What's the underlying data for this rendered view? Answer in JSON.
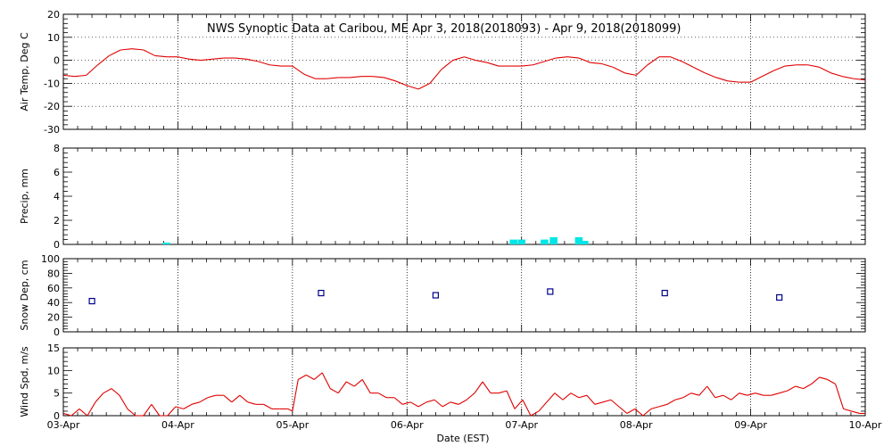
{
  "chart_data": {
    "title": "NWS Synoptic Data at Caribou, ME   Apr  3, 2018(2018093) - Apr  9, 2018(2018099)",
    "xlabel": "Date (EST)",
    "x_ticks": [
      "03-Apr",
      "04-Apr",
      "05-Apr",
      "06-Apr",
      "07-Apr",
      "08-Apr",
      "09-Apr",
      "10-Apr"
    ],
    "xlim": [
      0,
      7
    ],
    "panels": [
      {
        "name": "air-temp",
        "type": "line",
        "ylabel": "Air Temp, Deg C",
        "ylim": [
          -30,
          20
        ],
        "yticks": [
          20,
          10,
          0,
          -10,
          -20,
          -30
        ],
        "color": "#e00000",
        "x": [
          0,
          0.1,
          0.2,
          0.3,
          0.4,
          0.5,
          0.6,
          0.7,
          0.8,
          0.9,
          1.0,
          1.1,
          1.2,
          1.3,
          1.4,
          1.5,
          1.6,
          1.7,
          1.8,
          1.9,
          2.0,
          2.1,
          2.2,
          2.3,
          2.4,
          2.5,
          2.6,
          2.7,
          2.8,
          2.9,
          3.0,
          3.1,
          3.2,
          3.3,
          3.4,
          3.5,
          3.6,
          3.7,
          3.8,
          3.9,
          4.0,
          4.1,
          4.2,
          4.3,
          4.4,
          4.5,
          4.6,
          4.7,
          4.8,
          4.9,
          5.0,
          5.1,
          5.2,
          5.3,
          5.4,
          5.5,
          5.6,
          5.7,
          5.8,
          5.9,
          6.0,
          6.1,
          6.2,
          6.3,
          6.4,
          6.5,
          6.6,
          6.7,
          6.8,
          6.9,
          7.0
        ],
        "values": [
          -6.5,
          -7,
          -6.5,
          -2,
          2,
          4.5,
          5,
          4.5,
          2,
          1.5,
          1.5,
          0.5,
          0,
          0.5,
          1,
          1,
          0.5,
          -0.5,
          -2,
          -2.5,
          -2.5,
          -6,
          -8,
          -8,
          -7.5,
          -7.5,
          -7,
          -7,
          -7.5,
          -9,
          -11,
          -12.5,
          -10,
          -4,
          0,
          1.5,
          0,
          -1,
          -2.5,
          -2.5,
          -2.5,
          -2,
          -0.5,
          1,
          1.5,
          1,
          -1,
          -1.5,
          -3,
          -5.5,
          -6.5,
          -2,
          1.5,
          1.5,
          -0.5,
          -3,
          -5.5,
          -7.5,
          -9,
          -9.5,
          -9.5,
          -7,
          -4.5,
          -2.5,
          -2,
          -2,
          -3,
          -5.5,
          -7,
          -8,
          -8.5
        ]
      },
      {
        "name": "precip",
        "type": "bar",
        "ylabel": "Precip, mm",
        "ylim": [
          0,
          8
        ],
        "yticks": [
          8,
          6,
          4,
          2,
          0
        ],
        "color": "#00e5e5",
        "x": [
          0.9,
          3.93,
          4.0,
          4.2,
          4.28,
          4.5,
          4.55
        ],
        "values": [
          0.15,
          0.4,
          0.4,
          0.4,
          0.6,
          0.6,
          0.3
        ]
      },
      {
        "name": "snow-depth",
        "type": "scatter",
        "ylabel": "Snow Dep, cm",
        "ylim": [
          0,
          100
        ],
        "yticks": [
          100,
          80,
          60,
          40,
          20,
          0
        ],
        "color": "#00008b",
        "x": [
          0.25,
          2.25,
          3.25,
          4.25,
          5.25,
          6.25
        ],
        "values": [
          42,
          53,
          50,
          55,
          53,
          47
        ]
      },
      {
        "name": "wind-speed",
        "type": "line",
        "ylabel": "Wind Spd, m/s",
        "ylim": [
          0,
          15
        ],
        "yticks": [
          15,
          10,
          5,
          0
        ],
        "color": "#e00000",
        "x": [
          0,
          0.07,
          0.14,
          0.21,
          0.28,
          0.35,
          0.42,
          0.49,
          0.56,
          0.63,
          0.7,
          0.77,
          0.84,
          0.91,
          0.98,
          1.05,
          1.12,
          1.19,
          1.26,
          1.33,
          1.4,
          1.47,
          1.54,
          1.61,
          1.68,
          1.75,
          1.82,
          1.89,
          1.96,
          2.0,
          2.05,
          2.12,
          2.19,
          2.26,
          2.33,
          2.4,
          2.47,
          2.54,
          2.61,
          2.68,
          2.75,
          2.82,
          2.89,
          2.96,
          3.03,
          3.1,
          3.17,
          3.24,
          3.31,
          3.38,
          3.45,
          3.52,
          3.59,
          3.66,
          3.73,
          3.8,
          3.87,
          3.94,
          4.01,
          4.08,
          4.15,
          4.22,
          4.29,
          4.36,
          4.43,
          4.5,
          4.57,
          4.64,
          4.71,
          4.78,
          4.85,
          4.92,
          4.99,
          5.06,
          5.13,
          5.2,
          5.27,
          5.34,
          5.41,
          5.48,
          5.55,
          5.62,
          5.69,
          5.76,
          5.83,
          5.9,
          5.97,
          6.04,
          6.11,
          6.18,
          6.25,
          6.32,
          6.39,
          6.46,
          6.53,
          6.6,
          6.67,
          6.74,
          6.81,
          6.88,
          6.95,
          7.0
        ],
        "values": [
          0.5,
          0,
          1.5,
          0,
          3,
          5,
          6,
          4.5,
          1.5,
          0,
          0,
          2.5,
          0,
          0,
          2,
          1.5,
          2.5,
          3,
          4,
          4.5,
          4.5,
          3,
          4.5,
          3,
          2.5,
          2.5,
          1.5,
          1.5,
          1.5,
          1,
          8,
          9,
          8,
          9.5,
          6,
          5,
          7.5,
          6.5,
          8,
          5,
          5,
          4,
          4,
          2.5,
          3,
          2,
          3,
          3.5,
          2,
          3,
          2.5,
          3.5,
          5,
          7.5,
          5,
          5,
          5.5,
          1.5,
          3.5,
          0,
          1,
          3,
          5,
          3.5,
          5,
          4,
          4.5,
          2.5,
          3,
          3.5,
          2,
          0.5,
          1.5,
          0,
          1.5,
          2,
          2.5,
          3.5,
          4,
          5,
          4.5,
          6.5,
          4,
          4.5,
          3.5,
          5,
          4.5,
          5,
          4.5,
          4.5,
          5,
          5.5,
          6.5,
          6,
          7,
          8.5,
          8,
          7,
          1.5,
          1,
          0.5,
          0.5
        ]
      }
    ]
  }
}
